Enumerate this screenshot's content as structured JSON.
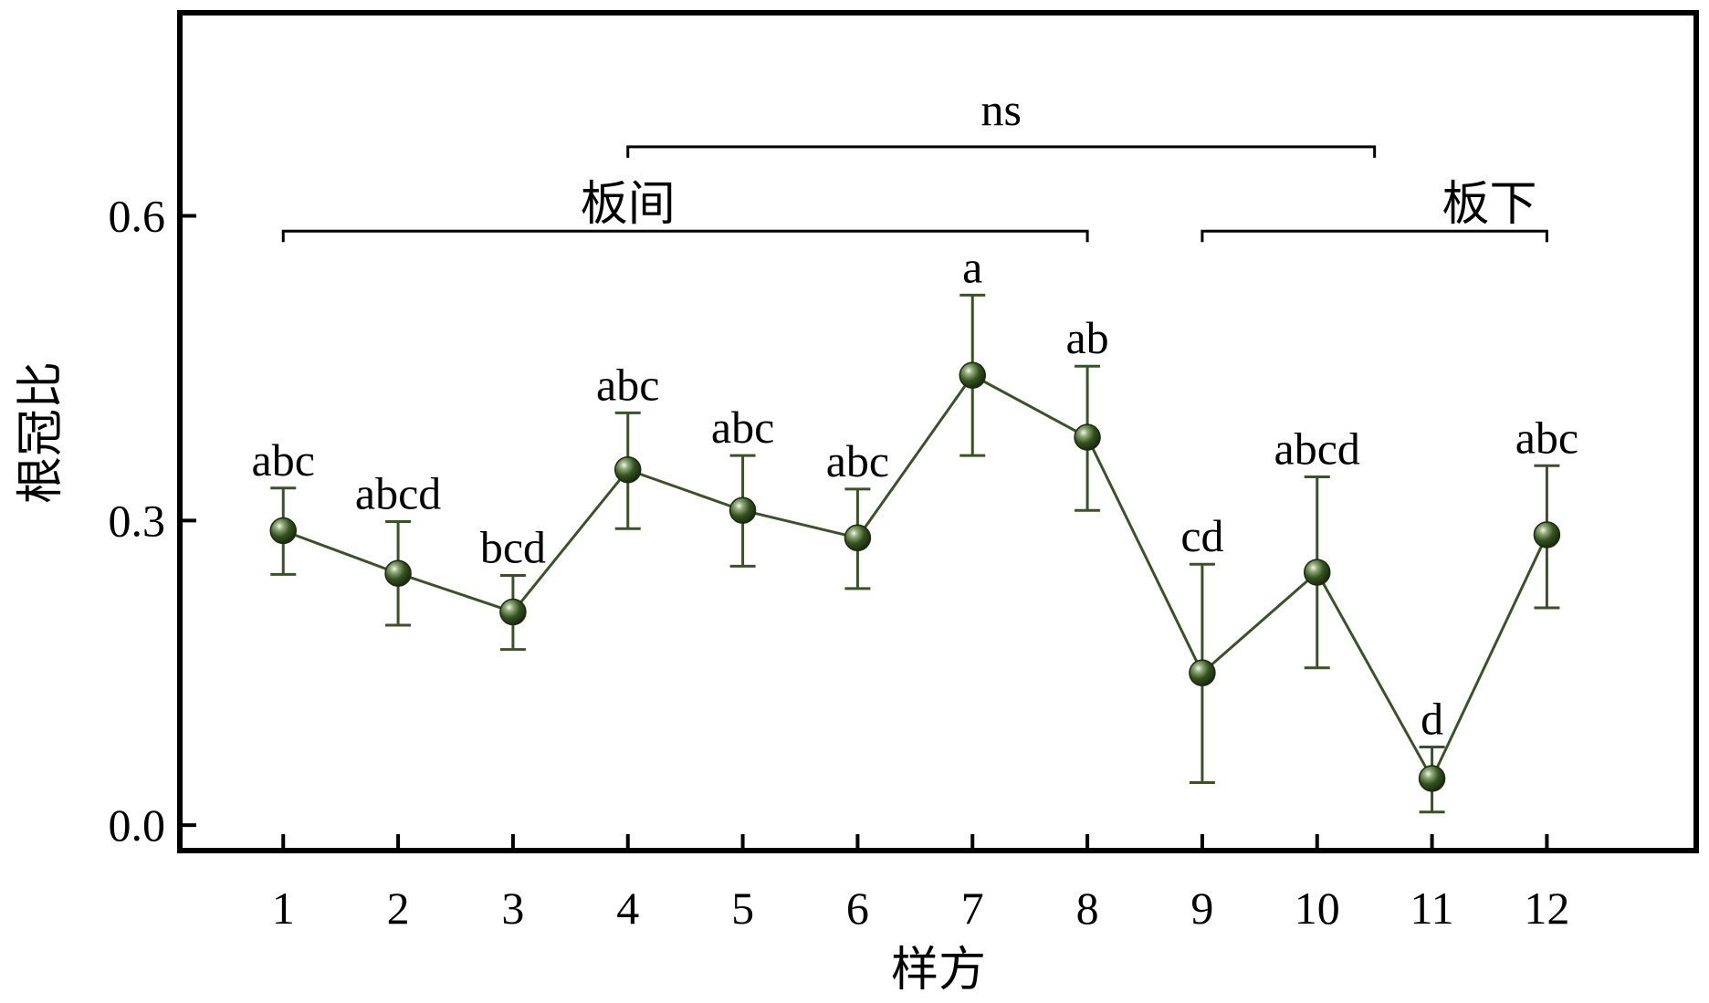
{
  "chart_data": {
    "type": "line",
    "xlabel": "样方",
    "ylabel": "根冠比",
    "x": [
      1,
      2,
      3,
      4,
      5,
      6,
      7,
      8,
      9,
      10,
      11,
      12
    ],
    "x_tick_labels": [
      "1",
      "2",
      "3",
      "4",
      "5",
      "6",
      "7",
      "8",
      "9",
      "10",
      "11",
      "12"
    ],
    "y_ticks": [
      0.0,
      0.3,
      0.6
    ],
    "y_tick_labels": [
      "0.0",
      "0.3",
      "0.6"
    ],
    "xlim": [
      0.1,
      13.3
    ],
    "ylim": [
      -0.025,
      0.8
    ],
    "grid": false,
    "legend": "none",
    "series": [
      {
        "values": [
          0.29,
          0.248,
          0.21,
          0.35,
          0.31,
          0.283,
          0.443,
          0.382,
          0.15,
          0.249,
          0.046,
          0.286
        ],
        "error_lower": [
          0.247,
          0.197,
          0.173,
          0.292,
          0.255,
          0.233,
          0.364,
          0.31,
          0.042,
          0.155,
          0.013,
          0.214
        ],
        "error_upper": [
          0.332,
          0.299,
          0.246,
          0.406,
          0.364,
          0.331,
          0.522,
          0.452,
          0.257,
          0.343,
          0.077,
          0.354
        ],
        "significance": [
          "abc",
          "abcd",
          "bcd",
          "abc",
          "abc",
          "abc",
          "a",
          "ab",
          "cd",
          "abcd",
          "d",
          "abc"
        ],
        "color": "#3b5228",
        "marker_color": "#2f4a1e"
      }
    ],
    "annotations": {
      "groups": [
        {
          "label": "板间",
          "from_x": 1,
          "to_x": 8
        },
        {
          "label": "板下",
          "from_x": 9,
          "to_x": 12
        }
      ],
      "comparison": {
        "label": "ns",
        "from_x": 4,
        "to_x": 10.5
      }
    }
  }
}
